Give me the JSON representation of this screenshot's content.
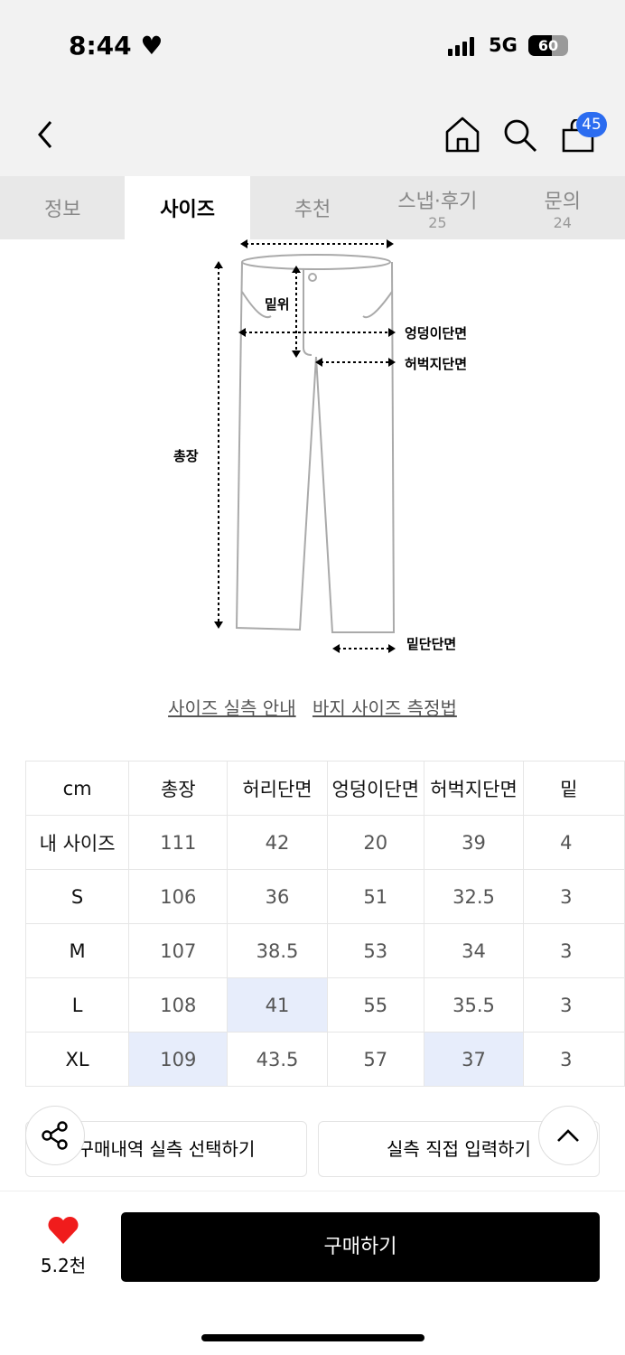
{
  "status": {
    "time": "8:44",
    "network": "5G",
    "battery": "60",
    "battery_level": 60
  },
  "nav": {
    "cart_count": "45"
  },
  "tabs": [
    {
      "label": "정보"
    },
    {
      "label": "사이즈",
      "active": true
    },
    {
      "label": "추천"
    },
    {
      "label": "스냅·후기",
      "count": "25"
    },
    {
      "label": "문의",
      "count": "24"
    }
  ],
  "diagram": {
    "rise": "밑위",
    "hip": "엉덩이단면",
    "thigh": "허벅지단면",
    "length": "총장",
    "hem": "밑단단면"
  },
  "links": {
    "guide": "사이즈 실측 안내",
    "measure": "바지 사이즈 측정법"
  },
  "table": {
    "headers": [
      "cm",
      "총장",
      "허리단면",
      "엉덩이단면",
      "허벅지단면",
      "밑"
    ],
    "rows": [
      [
        "내 사이즈",
        "111",
        "42",
        "20",
        "39",
        "4"
      ],
      [
        "S",
        "106",
        "36",
        "51",
        "32.5",
        "3"
      ],
      [
        "M",
        "107",
        "38.5",
        "53",
        "34",
        "3"
      ],
      [
        "L",
        "108",
        "41",
        "55",
        "35.5",
        "3"
      ],
      [
        "XL",
        "109",
        "43.5",
        "57",
        "37",
        "3"
      ]
    ]
  },
  "actions": {
    "history": "구매내역 실측 선택하기",
    "manual": "실측 직접 입력하기"
  },
  "bottom": {
    "likes": "5.2천",
    "buy": "구매하기",
    "heart_color": "#f01c1c"
  }
}
